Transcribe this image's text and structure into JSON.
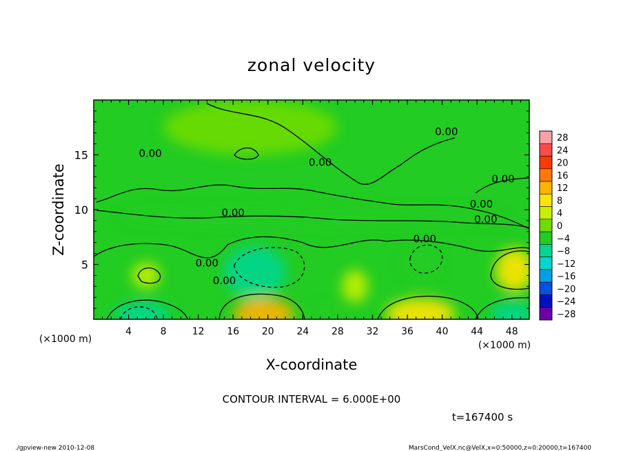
{
  "chart_data": {
    "type": "heatmap",
    "title": "zonal velocity",
    "xlabel": "X-coordinate",
    "ylabel": "Z-coordinate",
    "x_unit": "(×1000 m)",
    "y_unit": "(×1000 m)",
    "xlim": [
      0,
      50
    ],
    "ylim": [
      0,
      20
    ],
    "x_ticks": [
      4,
      8,
      12,
      16,
      20,
      24,
      28,
      32,
      36,
      40,
      44,
      48
    ],
    "y_ticks": [
      5,
      10,
      15
    ],
    "colorbar": {
      "levels": [
        28,
        24,
        20,
        16,
        12,
        8,
        4,
        0,
        -4,
        -8,
        -12,
        -16,
        -20,
        -24,
        -28
      ],
      "colors": [
        "#f7a1a6",
        "#ff4a4a",
        "#ff3a00",
        "#ff7a00",
        "#ffb300",
        "#ffe600",
        "#c8f000",
        "#6fdc00",
        "#22cc22",
        "#00d68f",
        "#00d6d0",
        "#00a0e6",
        "#0052e0",
        "#0010c0",
        "#6a00a8"
      ]
    },
    "contour_labels": [
      {
        "text": "0.00",
        "x": 6.5,
        "z": 14.8
      },
      {
        "text": "0.00",
        "x": 26,
        "z": 14.0
      },
      {
        "text": "0.00",
        "x": 40.5,
        "z": 16.8
      },
      {
        "text": "0.00",
        "x": 47,
        "z": 12.5
      },
      {
        "text": "0.00",
        "x": 44.5,
        "z": 10.2
      },
      {
        "text": "0.00",
        "x": 45,
        "z": 8.8
      },
      {
        "text": "0.00",
        "x": 16,
        "z": 9.4
      },
      {
        "text": "0.00",
        "x": 38,
        "z": 7.0
      },
      {
        "text": "0.00",
        "x": 13,
        "z": 4.8
      },
      {
        "text": "0.00",
        "x": 15,
        "z": 3.2
      }
    ],
    "anomalies": [
      {
        "x": 5.5,
        "z": 0.4,
        "value": -10,
        "rx": 3.2,
        "rz": 1.2
      },
      {
        "x": 19.5,
        "z": 0.5,
        "value": 10,
        "rx": 3.5,
        "rz": 1.4
      },
      {
        "x": 37.5,
        "z": 0.5,
        "value": 8,
        "rx": 4,
        "rz": 1.4
      },
      {
        "x": 48,
        "z": 0.4,
        "value": -9,
        "rx": 2.4,
        "rz": 1.2
      },
      {
        "x": 26.5,
        "z": 0.3,
        "value": -6,
        "rx": 1.6,
        "rz": 0.8
      },
      {
        "x": 18.5,
        "z": 4.3,
        "value": -7,
        "rx": 3.6,
        "rz": 2.4
      },
      {
        "x": 37.5,
        "z": 5.0,
        "value": -5,
        "rx": 2.0,
        "rz": 1.8
      },
      {
        "x": 6,
        "z": 4.0,
        "value": 5,
        "rx": 1.6,
        "rz": 1.2
      },
      {
        "x": 48.3,
        "z": 4.5,
        "value": 6,
        "rx": 2.2,
        "rz": 2.0
      },
      {
        "x": 30,
        "z": 3.0,
        "value": 2,
        "rx": 1.5,
        "rz": 1.5
      },
      {
        "x": 25,
        "z": 9.3,
        "value": -3,
        "rx": 22,
        "rz": 0.9
      },
      {
        "x": 18,
        "z": 17.5,
        "value": -1.5,
        "rx": 10,
        "rz": 2.5
      }
    ]
  },
  "contour_interval_text": "CONTOUR INTERVAL = 6.000E+00",
  "time_text": "t=167400 s",
  "footer_left": "./gpview-new  2010-12-08",
  "footer_right": "MarsCond_VelX.nc@VelX,x=0:50000,z=0:20000,t=167400"
}
